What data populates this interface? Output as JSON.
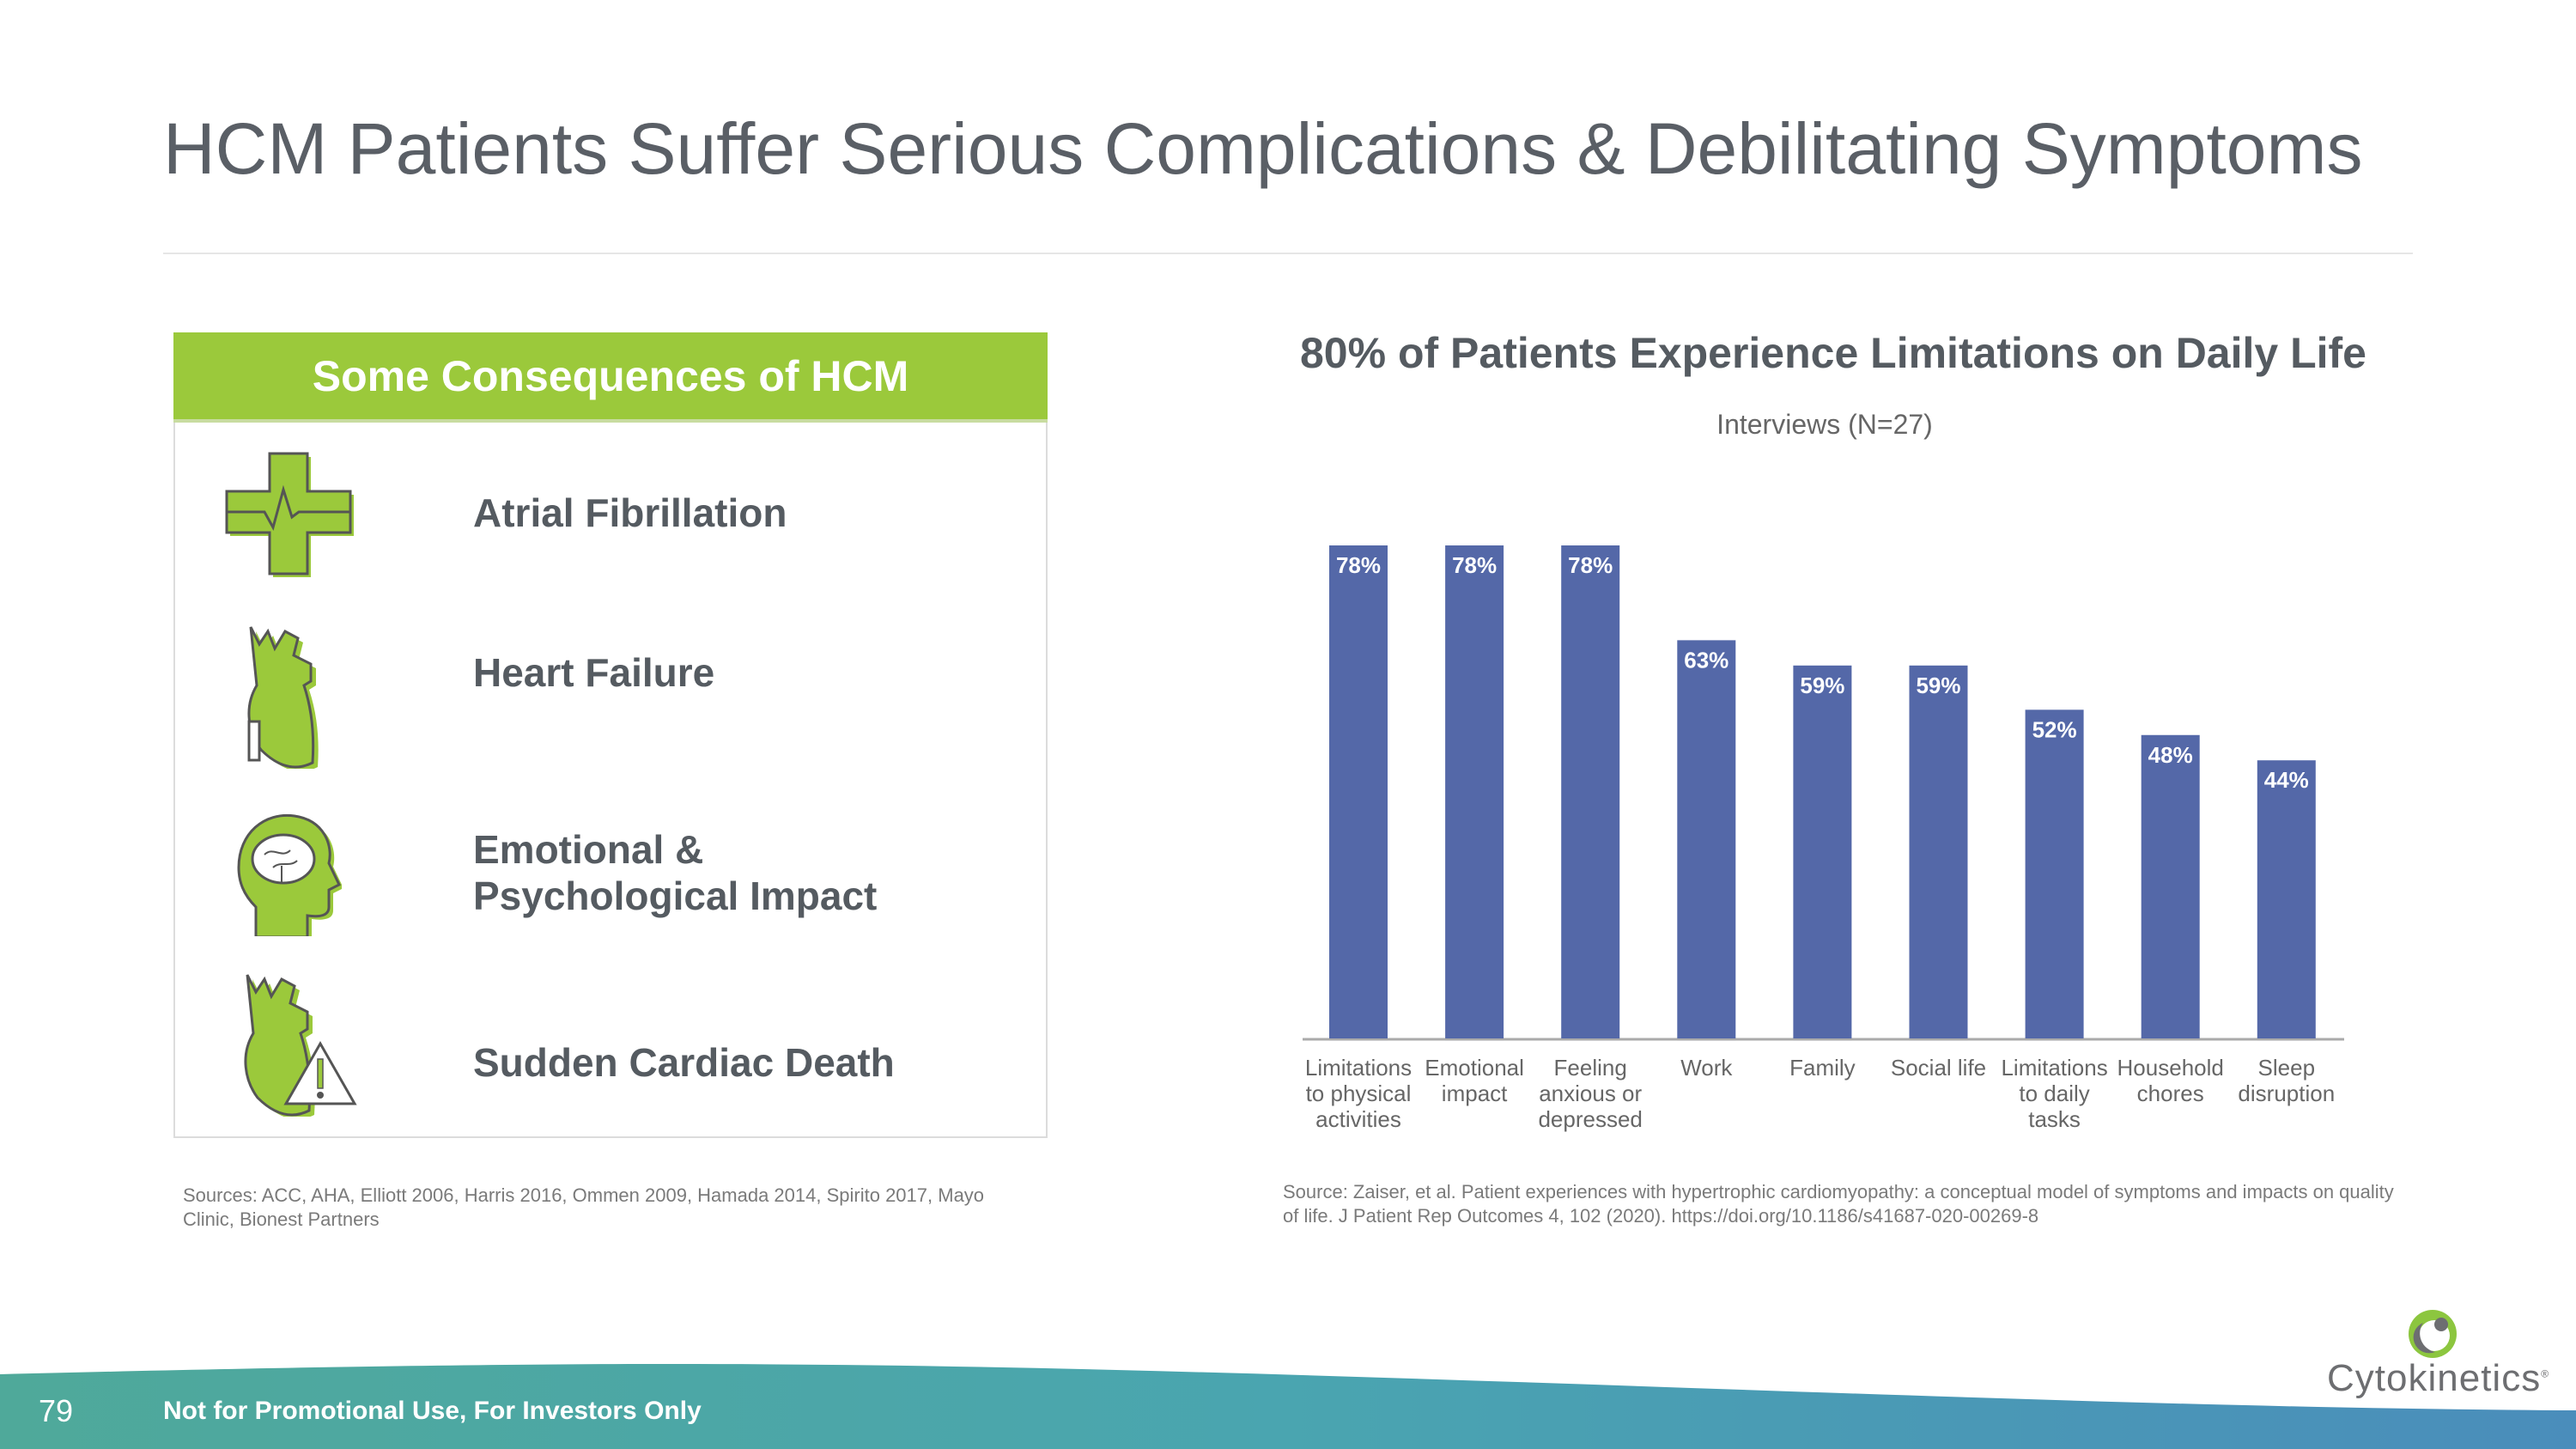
{
  "title": "HCM Patients Suffer Serious Complications & Debilitating Symptoms",
  "consequences": {
    "heading": "Some Consequences of HCM",
    "items": [
      {
        "label": "Atrial Fibrillation",
        "icon": "medical-cross-heartbeat-icon"
      },
      {
        "label": "Heart Failure",
        "icon": "heart-icon"
      },
      {
        "label_line1": "Emotional &",
        "label_line2": "Psychological Impact",
        "icon": "head-brain-icon"
      },
      {
        "label": "Sudden Cardiac Death",
        "icon": "heart-warning-icon"
      }
    ],
    "sources": "Sources: ACC, AHA, Elliott 2006, Harris 2016, Ommen 2009, Hamada 2014, Spirito 2017, Mayo Clinic, Bionest Partners"
  },
  "chart_data": {
    "type": "bar",
    "title": "80% of Patients Experience Limitations on Daily Life",
    "subtitle": "Interviews (N=27)",
    "categories": [
      [
        "Limitations",
        "to physical",
        "activities"
      ],
      [
        "Emotional",
        "impact"
      ],
      [
        "Feeling",
        "anxious or",
        "depressed"
      ],
      [
        "Work"
      ],
      [
        "Family"
      ],
      [
        "Social life"
      ],
      [
        "Limitations",
        "to daily",
        "tasks"
      ],
      [
        "Household",
        "chores"
      ],
      [
        "Sleep",
        "disruption"
      ]
    ],
    "values": [
      78,
      78,
      78,
      63,
      59,
      59,
      52,
      48,
      44
    ],
    "data_labels": [
      "78%",
      "78%",
      "78%",
      "63%",
      "59%",
      "59%",
      "52%",
      "48%",
      "44%"
    ],
    "ylim": [
      0,
      80
    ],
    "grid": false,
    "bar_color": "#5468a8",
    "source": "Source: Zaiser, et al. Patient experiences with hypertrophic cardiomyopathy: a conceptual model of symptoms and impacts on quality of life. J Patient Rep Outcomes 4, 102 (2020). https://doi.org/10.1186/s41687-020-00269-8"
  },
  "footer": {
    "page_number": "79",
    "disclaimer": "Not for Promotional Use, For Investors Only"
  },
  "logo": {
    "text": "Cytokinetics",
    "mark": "®"
  },
  "colors": {
    "accent_green": "#9bc93b",
    "bar_blue": "#5468a8",
    "text_gray": "#555b61"
  }
}
